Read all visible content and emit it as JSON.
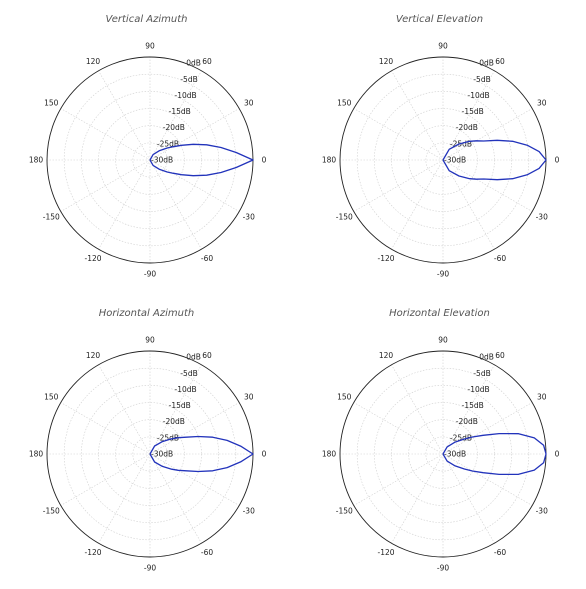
{
  "chart_data": [
    {
      "type": "polar-line",
      "title": "Vertical Azimuth",
      "angle_ticks": [
        "0",
        "30",
        "60",
        "90",
        "120",
        "150",
        "180",
        "-150",
        "-120",
        "-90",
        "-60",
        "-30"
      ],
      "radial_ticks": [
        "0dB",
        "-5dB",
        "-10dB",
        "-15dB",
        "-20dB",
        "-25dB",
        "-30dB"
      ],
      "radial_range_db": [
        -30,
        0
      ],
      "grid": true,
      "series": [
        {
          "color": "#2233bb",
          "angles_deg": [
            -90,
            -60,
            -45,
            -35,
            -30,
            -25,
            -20,
            -15,
            -10,
            -5,
            0,
            5,
            10,
            15,
            20,
            25,
            30,
            35,
            45,
            60,
            90
          ],
          "gain_db": [
            -30,
            -28.2,
            -26.2,
            -23.9,
            -22.3,
            -19.9,
            -16.6,
            -12.9,
            -9,
            -4.8,
            0,
            -4.8,
            -9,
            -12.9,
            -16.6,
            -19.9,
            -22.3,
            -23.9,
            -26.2,
            -28.2,
            -30
          ]
        }
      ]
    },
    {
      "type": "polar-line",
      "title": "Vertical Elevation",
      "angle_ticks": [
        "0",
        "30",
        "60",
        "90",
        "120",
        "150",
        "180",
        "-150",
        "-120",
        "-90",
        "-60",
        "-30"
      ],
      "radial_ticks": [
        "0dB",
        "-5dB",
        "-10dB",
        "-15dB",
        "-20dB",
        "-25dB",
        "-30dB"
      ],
      "radial_range_db": [
        -30,
        0
      ],
      "grid": true,
      "series": [
        {
          "color": "#2233bb",
          "angles_deg": [
            -90,
            -60,
            -45,
            -35,
            -30,
            -25,
            -20,
            -15,
            -10,
            -5,
            0,
            5,
            10,
            15,
            20,
            25,
            30,
            35,
            45,
            60,
            90
          ],
          "gain_db": [
            -30,
            -26.4,
            -23.4,
            -20.5,
            -18.8,
            -16.9,
            -13.2,
            -9,
            -5.1,
            -1.9,
            0,
            -1.9,
            -5.1,
            -9,
            -13.2,
            -16.9,
            -18.8,
            -20.5,
            -23.4,
            -26.4,
            -30
          ]
        }
      ]
    },
    {
      "type": "polar-line",
      "title": "Horizontal Azimuth",
      "angle_ticks": [
        "0",
        "30",
        "60",
        "90",
        "120",
        "150",
        "180",
        "-150",
        "-120",
        "-90",
        "-60",
        "-30"
      ],
      "radial_ticks": [
        "0dB",
        "-5dB",
        "-10dB",
        "-15dB",
        "-20dB",
        "-25dB",
        "-30dB"
      ],
      "radial_range_db": [
        -30,
        0
      ],
      "grid": true,
      "series": [
        {
          "color": "#2233bb",
          "angles_deg": [
            -90,
            -60,
            -45,
            -35,
            -30,
            -25,
            -20,
            -15,
            -10,
            -5,
            0,
            5,
            10,
            15,
            20,
            25,
            30,
            35,
            45,
            60,
            90
          ],
          "gain_db": [
            -30,
            -27.3,
            -24.9,
            -22.3,
            -20.5,
            -18.4,
            -15.1,
            -11.1,
            -7.2,
            -3.5,
            0,
            -3.5,
            -7.2,
            -11.1,
            -15.1,
            -18.4,
            -20.5,
            -22.3,
            -24.9,
            -27.3,
            -30
          ]
        }
      ]
    },
    {
      "type": "polar-line",
      "title": "Horizontal Elevation",
      "angle_ticks": [
        "0",
        "30",
        "60",
        "90",
        "120",
        "150",
        "180",
        "-150",
        "-120",
        "-90",
        "-60",
        "-30"
      ],
      "radial_ticks": [
        "0dB",
        "-5dB",
        "-10dB",
        "-15dB",
        "-20dB",
        "-25dB",
        "-30dB"
      ],
      "radial_range_db": [
        -30,
        0
      ],
      "grid": true,
      "series": [
        {
          "color": "#2233bb",
          "angles_deg": [
            -90,
            -60,
            -45,
            -35,
            -30,
            -25,
            -20,
            -15,
            -10,
            -5,
            0,
            5,
            10,
            15,
            20,
            25,
            30,
            35,
            45,
            60,
            90
          ],
          "gain_db": [
            -30,
            -27.6,
            -25.2,
            -22.4,
            -20.1,
            -17.1,
            -12.6,
            -7.2,
            -3,
            -0.6,
            0,
            -0.6,
            -3,
            -7.2,
            -12.6,
            -17.1,
            -20.1,
            -22.4,
            -25.2,
            -27.6,
            -30
          ]
        }
      ]
    }
  ]
}
